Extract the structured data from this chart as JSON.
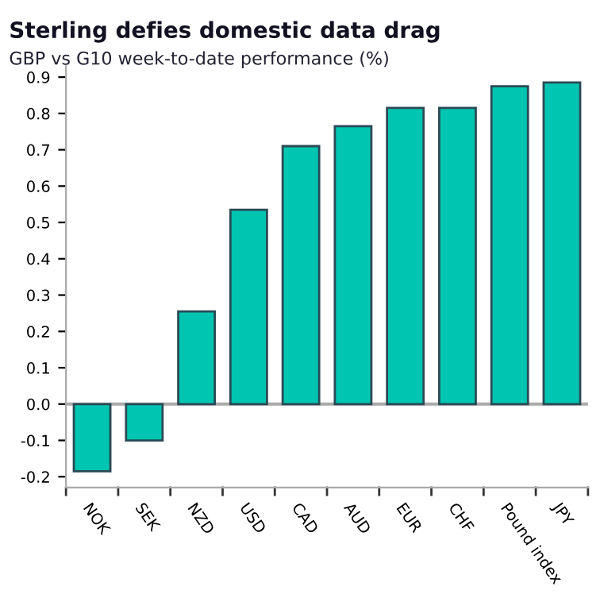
{
  "chart_data": {
    "type": "bar",
    "title": "Sterling defies domestic data drag",
    "subtitle": "GBP vs G10 week-to-date performance (%)",
    "categories": [
      "NOK",
      "SEK",
      "NZD",
      "USD",
      "CAD",
      "AUD",
      "EUR",
      "CHF",
      "Pound index",
      "JPY"
    ],
    "values": [
      -0.185,
      -0.1,
      0.255,
      0.535,
      0.71,
      0.765,
      0.815,
      0.815,
      0.875,
      0.885
    ],
    "color": "#00c5b0",
    "ylim": [
      -0.23,
      0.93
    ],
    "yticks": [
      {
        "value": -0.2,
        "label": "-0.2"
      },
      {
        "value": -0.1,
        "label": "-0.1"
      },
      {
        "value": 0,
        "label": "0.0"
      },
      0.1,
      0.2,
      0.3,
      0.4,
      0.5,
      0.6,
      0.7,
      0.8,
      0.9
    ],
    "grid": false,
    "legend": false,
    "ref_lines": [
      {
        "axis": "y",
        "value": 0,
        "color": "#aaaaaa"
      }
    ]
  }
}
